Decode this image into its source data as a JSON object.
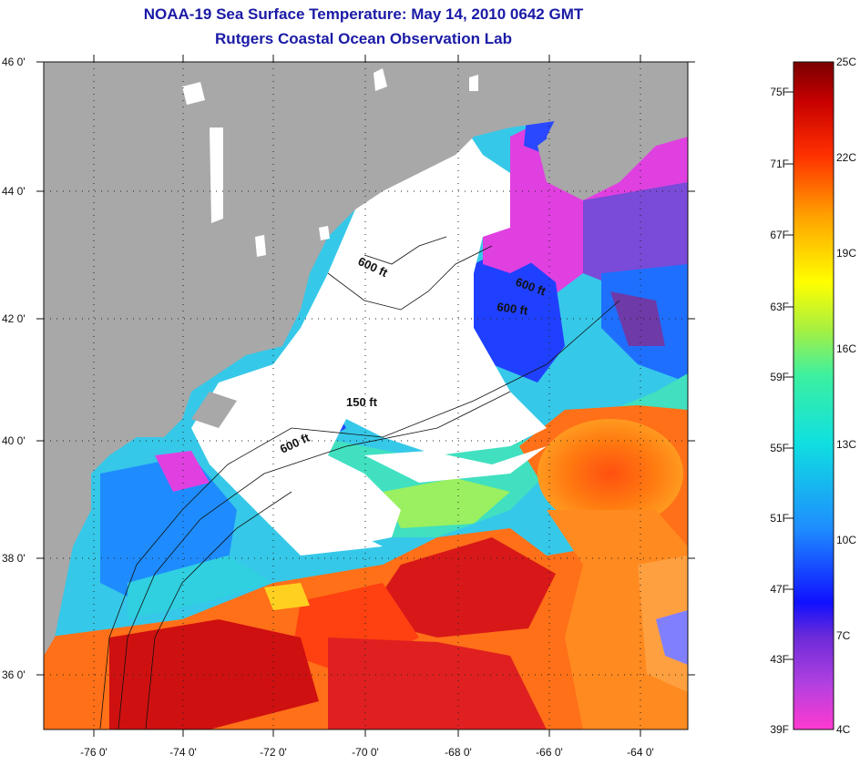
{
  "title": {
    "line1": "NOAA-19 Sea Surface Temperature:  May 14, 2010 0642 GMT",
    "line2": "Rutgers Coastal Ocean Observation Lab"
  },
  "axes": {
    "lat_labels": [
      "46 0'",
      "44 0'",
      "42 0'",
      "40 0'",
      "38 0'",
      "36 0'"
    ],
    "lon_labels": [
      "-76 0'",
      "-74 0'",
      "-72 0'",
      "-70 0'",
      "-68 0'",
      "-66 0'",
      "-64 0'"
    ]
  },
  "depth_labels": {
    "a": "600 ft",
    "b": "600 ft",
    "c": "600 ft",
    "d": "150 ft",
    "e": "600 ft"
  },
  "colorbar": {
    "fahrenheit": [
      "75F",
      "71F",
      "67F",
      "63F",
      "59F",
      "55F",
      "51F",
      "47F",
      "43F",
      "39F"
    ],
    "celsius": [
      "25C",
      "22C",
      "19C",
      "16C",
      "13C",
      "10C",
      "7C",
      "4C"
    ]
  },
  "colors": {
    "land": "#a8a8a8",
    "cloud": "#ffffff",
    "title": "#1a1aa6",
    "warm_core": "#d01010",
    "gulf_stream": "#ff6a10",
    "shelf_cool": "#29b6ff"
  }
}
